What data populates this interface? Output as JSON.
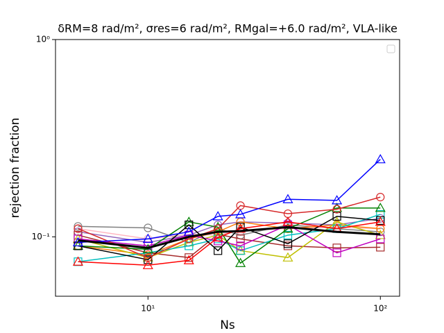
{
  "chart_data": {
    "type": "line",
    "title": "δRM=8 rad/m², σres=6 rad/m², RMgal=+6.0 rad/m², VLA-like",
    "x_label": "Ns",
    "y_label": "rejection fraction",
    "x": [
      5,
      10,
      15,
      20,
      25,
      40,
      65,
      100
    ],
    "x_log": true,
    "y_log": true,
    "xlim": [
      4,
      121
    ],
    "ylim": [
      0.05,
      1
    ],
    "xticks": [
      {
        "value": 10,
        "label": "10¹"
      },
      {
        "value": 100,
        "label": "10²"
      }
    ],
    "yticks": [
      {
        "value": 0.1,
        "label": "10⁻¹"
      },
      {
        "value": 1,
        "label": "10⁰"
      }
    ],
    "legend": "upper right",
    "series": [
      {
        "color": "#808080",
        "marker": "circle",
        "values": [
          0.113,
          0.111,
          0.0937,
          0.11,
          0.102,
          0.115,
          0.11,
          0.106
        ]
      },
      {
        "color": "#ffb6c1",
        "marker": "circle",
        "values": [
          0.11,
          0.0976,
          0.103,
          0.102,
          0.108,
          0.11,
          0.112,
          0.11
        ]
      },
      {
        "color": "#9467bd",
        "marker": "circle",
        "values": [
          0.106,
          0.0937,
          0.102,
          0.115,
          0.119,
          0.1175,
          0.115,
          0.124
        ]
      },
      {
        "color": "#ff7f0e",
        "marker": "circle",
        "values": [
          0.09,
          0.0811,
          0.0976,
          0.106,
          0.119,
          0.11,
          0.115,
          0.11
        ]
      },
      {
        "color": "#a52a2a",
        "marker": "square",
        "values": [
          0.102,
          0.083,
          0.0785,
          0.103,
          0.0976,
          0.09,
          0.0879,
          0.0886
        ]
      },
      {
        "color": "#bfbf00",
        "marker": "triangle",
        "values": [
          0.0976,
          0.0785,
          0.0937,
          0.102,
          0.0851,
          0.0785,
          0.119,
          0.102
        ]
      },
      {
        "color": "#00bfbf",
        "marker": "square",
        "values": [
          0.0748,
          0.083,
          0.09,
          0.0976,
          0.0851,
          0.102,
          0.11,
          0.13
        ]
      },
      {
        "color": "#bf00bf",
        "marker": "square",
        "values": [
          0.0976,
          0.09,
          0.102,
          0.0953,
          0.09,
          0.115,
          0.083,
          0.0976
        ]
      },
      {
        "color": "#008000",
        "marker": "triangle",
        "values": [
          0.09,
          0.0865,
          0.119,
          0.112,
          0.0736,
          0.11,
          0.14,
          0.14
        ]
      },
      {
        "color": "#000000",
        "marker": "square",
        "values": [
          0.09,
          0.0766,
          0.115,
          0.0851,
          0.112,
          0.0923,
          0.127,
          0.121
        ]
      },
      {
        "color": "#ff0000",
        "marker": "triangle",
        "values": [
          0.0748,
          0.0718,
          0.076,
          0.0992,
          0.11,
          0.119,
          0.11,
          0.119
        ]
      },
      {
        "color": "#d62728",
        "marker": "circle",
        "values": [
          0.11,
          0.0785,
          0.0976,
          0.11,
          0.144,
          0.131,
          0.138,
          0.159
        ]
      },
      {
        "color": "#0000ff",
        "marker": "triangle",
        "values": [
          0.0937,
          0.0976,
          0.106,
          0.127,
          0.13,
          0.155,
          0.153,
          0.247
        ]
      },
      {
        "color": "#000000",
        "marker": "none",
        "width": 3,
        "values": [
          0.096,
          0.0879,
          0.1,
          0.106,
          0.107,
          0.112,
          0.106,
          0.103
        ]
      }
    ]
  }
}
